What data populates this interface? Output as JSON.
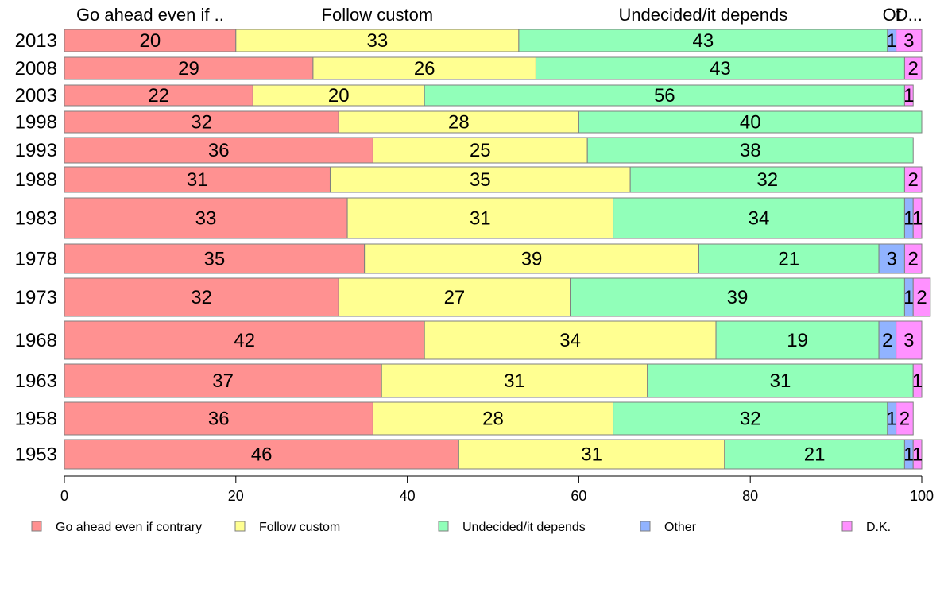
{
  "chart_data": {
    "type": "bar",
    "orientation": "horizontal",
    "stacked": true,
    "categories": [
      "2013",
      "2008",
      "2003",
      "1998",
      "1993",
      "1988",
      "1983",
      "1978",
      "1973",
      "1968",
      "1963",
      "1958",
      "1953"
    ],
    "series": [
      {
        "name": "Go ahead even if contrary",
        "header": "Go ahead even if ..",
        "color": "#ff9191",
        "values": [
          20,
          29,
          22,
          32,
          36,
          31,
          33,
          35,
          32,
          42,
          37,
          36,
          46
        ]
      },
      {
        "name": "Follow custom",
        "header": "Follow custom",
        "color": "#ffff91",
        "values": [
          33,
          26,
          20,
          28,
          25,
          35,
          31,
          39,
          27,
          34,
          31,
          28,
          31
        ]
      },
      {
        "name": "Undecided/it depends",
        "header": "Undecided/it depends",
        "color": "#91ffb9",
        "values": [
          43,
          43,
          56,
          40,
          38,
          32,
          34,
          21,
          39,
          19,
          31,
          32,
          21
        ]
      },
      {
        "name": "Other",
        "header": "Ot",
        "color": "#91b3ff",
        "values": [
          1,
          0,
          0,
          0,
          0,
          0,
          1,
          3,
          1,
          2,
          0,
          1,
          1
        ]
      },
      {
        "name": "D.K.",
        "header": "D...",
        "color": "#ff91ff",
        "values": [
          3,
          2,
          1,
          0,
          0,
          2,
          1,
          2,
          2,
          3,
          1,
          2,
          1
        ]
      }
    ],
    "xlim": [
      0,
      100
    ],
    "xticks": [
      "0",
      "20",
      "40",
      "60",
      "80",
      "100"
    ],
    "legend_position": "bottom",
    "grid": false
  }
}
